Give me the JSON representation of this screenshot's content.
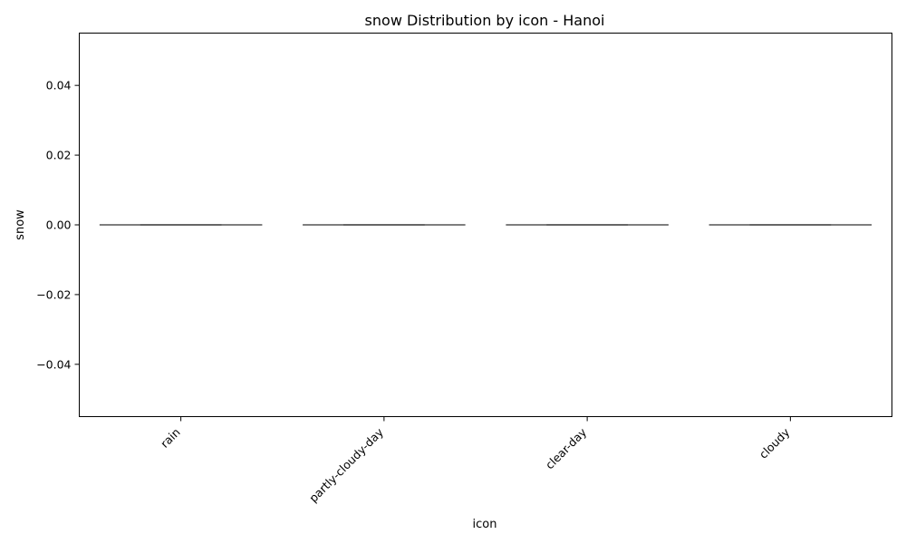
{
  "chart_data": {
    "type": "box",
    "title": "snow Distribution by icon - Hanoi",
    "xlabel": "icon",
    "ylabel": "snow",
    "categories": [
      "rain",
      "partly-cloudy-day",
      "clear-day",
      "cloudy"
    ],
    "boxes": [
      {
        "category": "rain",
        "min": 0,
        "q1": 0,
        "median": 0,
        "q3": 0,
        "max": 0
      },
      {
        "category": "partly-cloudy-day",
        "min": 0,
        "q1": 0,
        "median": 0,
        "q3": 0,
        "max": 0
      },
      {
        "category": "clear-day",
        "min": 0,
        "q1": 0,
        "median": 0,
        "q3": 0,
        "max": 0
      },
      {
        "category": "cloudy",
        "min": 0,
        "q1": 0,
        "median": 0,
        "q3": 0,
        "max": 0
      }
    ],
    "ylim": [
      -0.055,
      0.055
    ],
    "yticks": [
      0.04,
      0.02,
      0.0,
      -0.02,
      -0.04
    ],
    "ytick_labels": [
      "0.04",
      "0.02",
      "0.00",
      "−0.02",
      "−0.04"
    ],
    "grid": false,
    "colors": {
      "box_line": "#4d4d4d",
      "frame": "#000000"
    }
  }
}
